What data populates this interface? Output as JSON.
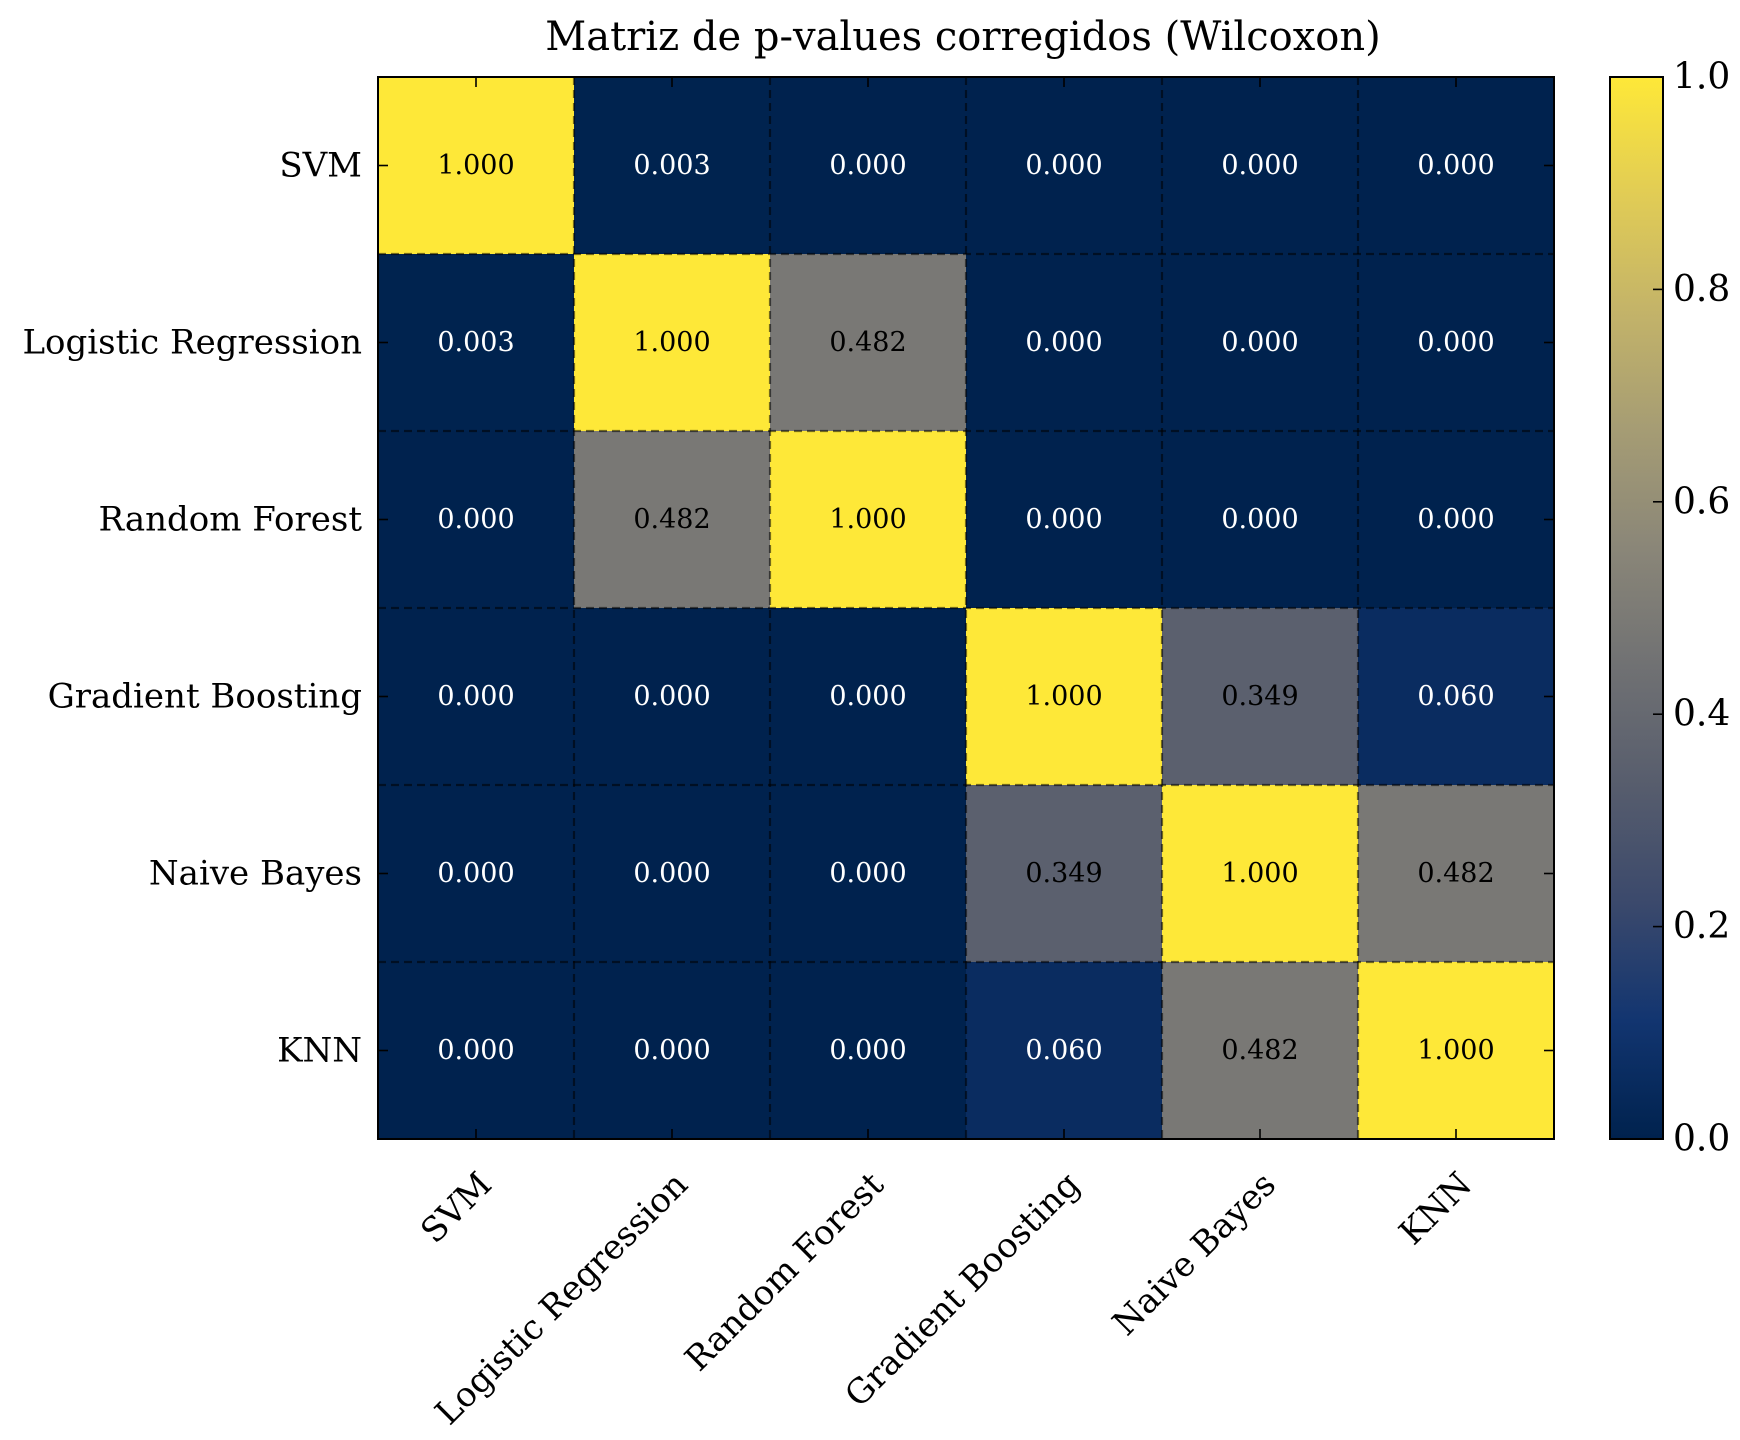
{
  "chart_data": {
    "type": "heatmap",
    "title": "Matriz de p-values corregidos (Wilcoxon)",
    "xlabel": "",
    "ylabel": "",
    "row_labels": [
      "SVM",
      "Logistic Regression",
      "Random Forest",
      "Gradient Boosting",
      "Naive Bayes",
      "KNN"
    ],
    "col_labels": [
      "SVM",
      "Logistic Regression",
      "Random Forest",
      "Gradient Boosting",
      "Naive Bayes",
      "KNN"
    ],
    "values": [
      [
        1.0,
        0.003,
        0.0,
        0.0,
        0.0,
        0.0
      ],
      [
        0.003,
        1.0,
        0.482,
        0.0,
        0.0,
        0.0
      ],
      [
        0.0,
        0.482,
        1.0,
        0.0,
        0.0,
        0.0
      ],
      [
        0.0,
        0.0,
        0.0,
        1.0,
        0.349,
        0.06
      ],
      [
        0.0,
        0.0,
        0.0,
        0.349,
        1.0,
        0.482
      ],
      [
        0.0,
        0.0,
        0.0,
        0.06,
        0.482,
        1.0
      ]
    ],
    "value_format": "0.000",
    "colormap": "cividis",
    "colormap_stops": [
      "#00224e",
      "#123570",
      "#3b496c",
      "#575d6d",
      "#707173",
      "#8a8678",
      "#a59c74",
      "#c3b369",
      "#e1cc55",
      "#fee838"
    ],
    "colorbar": {
      "range": [
        0.0,
        1.0
      ],
      "ticks": [
        "0.0",
        "0.2",
        "0.4",
        "0.6",
        "0.8",
        "1.0"
      ]
    },
    "grid": true,
    "grid_style": "dashed"
  }
}
